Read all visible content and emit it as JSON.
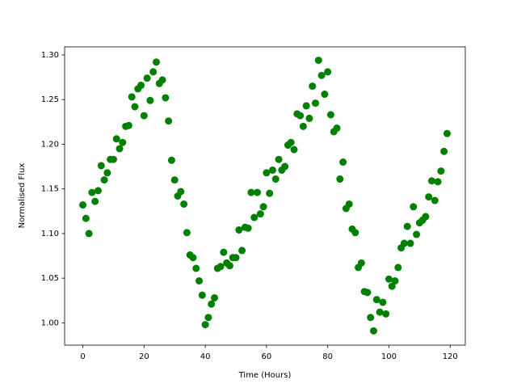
{
  "chart_data": {
    "type": "scatter",
    "xlabel": "Time (Hours)",
    "ylabel": "Normalised Flux",
    "color": "#008000",
    "x": [
      0,
      1,
      2,
      3,
      4,
      5,
      6,
      7,
      8,
      9,
      10,
      11,
      12,
      13,
      14,
      15,
      16,
      17,
      18,
      19,
      20,
      21,
      22,
      23,
      24,
      25,
      26,
      27,
      28,
      29,
      30,
      31,
      32,
      33,
      34,
      35,
      36,
      37,
      38,
      39,
      40,
      41,
      42,
      43,
      44,
      45,
      46,
      47,
      48,
      49,
      50,
      51,
      52,
      53,
      54,
      55,
      56,
      57,
      58,
      59,
      60,
      61,
      62,
      63,
      64,
      65,
      66,
      67,
      68,
      69,
      70,
      71,
      72,
      73,
      74,
      75,
      76,
      77,
      78,
      79,
      80,
      81,
      82,
      83,
      84,
      85,
      86,
      87,
      88,
      89,
      90,
      91,
      92,
      93,
      94,
      95,
      96,
      97,
      98,
      99,
      100,
      101,
      102,
      103,
      104,
      105,
      106,
      107,
      108,
      109,
      110,
      111,
      112,
      113,
      114,
      115,
      116,
      117,
      118,
      119
    ],
    "values": [
      1.132,
      1.117,
      1.1,
      1.146,
      1.136,
      1.148,
      1.176,
      1.16,
      1.168,
      1.183,
      1.183,
      1.206,
      1.195,
      1.202,
      1.22,
      1.221,
      1.253,
      1.242,
      1.262,
      1.266,
      1.232,
      1.274,
      1.249,
      1.281,
      1.292,
      1.268,
      1.272,
      1.252,
      1.226,
      1.182,
      1.16,
      1.142,
      1.147,
      1.133,
      1.101,
      1.076,
      1.073,
      1.061,
      1.047,
      1.031,
      0.998,
      1.006,
      1.021,
      1.028,
      1.061,
      1.063,
      1.079,
      1.067,
      1.064,
      1.073,
      1.073,
      1.104,
      1.081,
      1.107,
      1.106,
      1.146,
      1.118,
      1.146,
      1.122,
      1.13,
      1.168,
      1.145,
      1.171,
      1.161,
      1.183,
      1.171,
      1.175,
      1.199,
      1.202,
      1.194,
      1.234,
      1.232,
      1.22,
      1.243,
      1.229,
      1.265,
      1.246,
      1.294,
      1.277,
      1.256,
      1.281,
      1.233,
      1.214,
      1.218,
      1.161,
      1.18,
      1.128,
      1.133,
      1.105,
      1.101,
      1.062,
      1.067,
      1.035,
      1.034,
      1.006,
      0.991,
      1.026,
      1.012,
      1.023,
      1.01,
      1.049,
      1.041,
      1.047,
      1.062,
      1.084,
      1.089,
      1.108,
      1.089,
      1.13,
      1.099,
      1.112,
      1.115,
      1.119,
      1.141,
      1.159,
      1.137,
      1.158,
      1.17,
      1.192,
      1.212
    ],
    "xlim": [
      -5.95,
      124.95
    ],
    "ylim": [
      0.975,
      1.309
    ],
    "xticks": [
      0,
      20,
      40,
      60,
      80,
      100,
      120
    ],
    "yticks": [
      {
        "value": 1.0,
        "label": "1.00"
      },
      1.05,
      {
        "value": 1.1,
        "label": "1.10"
      },
      1.15,
      {
        "value": 1.2,
        "label": "1.20"
      },
      1.25,
      {
        "value": 1.3,
        "label": "1.30"
      }
    ],
    "grid": false
  }
}
